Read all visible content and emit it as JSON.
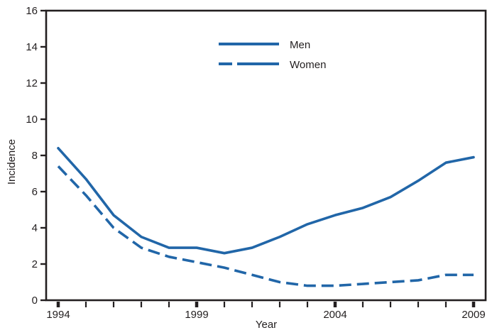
{
  "chart_data": {
    "type": "line",
    "title": "",
    "xlabel": "Year",
    "ylabel": "Incidence",
    "x": [
      1994,
      1995,
      1996,
      1997,
      1998,
      1999,
      2000,
      2001,
      2002,
      2003,
      2004,
      2005,
      2006,
      2007,
      2008,
      2009
    ],
    "series": [
      {
        "name": "Men",
        "style": "solid",
        "values": [
          8.4,
          6.7,
          4.7,
          3.5,
          2.9,
          2.9,
          2.6,
          2.9,
          3.5,
          4.2,
          4.7,
          5.1,
          5.7,
          6.6,
          7.6,
          7.9
        ]
      },
      {
        "name": "Women",
        "style": "dashed",
        "values": [
          7.4,
          5.8,
          4.0,
          2.9,
          2.4,
          2.1,
          1.8,
          1.4,
          1.0,
          0.8,
          0.8,
          0.9,
          1.0,
          1.1,
          1.4,
          1.4
        ]
      }
    ],
    "ylim": [
      0,
      16
    ],
    "y_ticks": [
      0,
      2,
      4,
      6,
      8,
      10,
      12,
      14,
      16
    ],
    "x_labeled_ticks": [
      1994,
      1999,
      2004,
      2009
    ],
    "legend_position": "upper-center",
    "grid": false,
    "line_color": "#2166a8",
    "axis_color": "#231f20"
  }
}
